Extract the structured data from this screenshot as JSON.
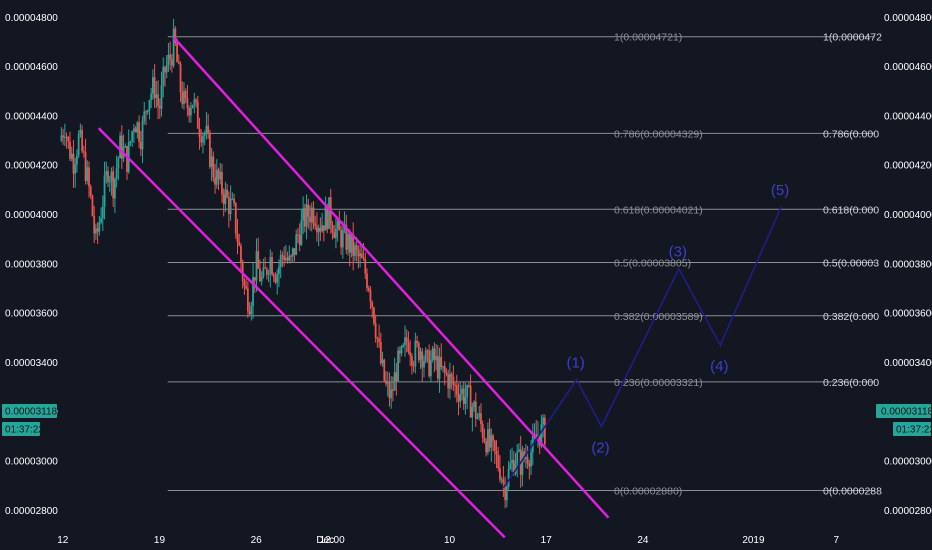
{
  "chart_data": {
    "type": "candlestick",
    "title": "",
    "price_axis": {
      "ticks": [
        2.8e-05,
        3e-05,
        3.2e-05,
        3.4e-05,
        3.6e-05,
        3.8e-05,
        4e-05,
        4.2e-05,
        4.4e-05,
        4.6e-05,
        4.8e-05
      ],
      "labels": [
        "0.00002800",
        "0.00003000",
        "0.00003200",
        "0.00003400",
        "0.00003600",
        "0.00003800",
        "0.00004000",
        "0.00004200",
        "0.00004400",
        "0.00004600",
        "0.00004800"
      ],
      "range": [
        2.72e-05,
        4.87e-05
      ]
    },
    "time_axis": {
      "ticks": [
        {
          "label": "12",
          "t": 0
        },
        {
          "label": "19",
          "t": 7
        },
        {
          "label": "26",
          "t": 14
        },
        {
          "label": "Dec",
          "t": 19
        },
        {
          "label": "12:00",
          "t": 19.5
        },
        {
          "label": "10",
          "t": 28
        },
        {
          "label": "17",
          "t": 35
        },
        {
          "label": "24",
          "t": 42
        },
        {
          "label": "2019",
          "t": 50
        },
        {
          "label": "7",
          "t": 56
        }
      ],
      "range": [
        -0.2,
        58.8
      ]
    },
    "current_price": {
      "label": "0.00003118",
      "countdown": "01:37:22",
      "value": 3.118e-05
    },
    "price_path": [
      [
        -0.1,
        4.3e-05
      ],
      [
        0.3,
        4.37e-05
      ],
      [
        0.5,
        4.28e-05
      ],
      [
        0.9,
        4.22e-05
      ],
      [
        1.3,
        4.31e-05
      ],
      [
        1.8,
        4.18e-05
      ],
      [
        2.2,
        4.04e-05
      ],
      [
        2.5,
        3.88e-05
      ],
      [
        3.0,
        4.05e-05
      ],
      [
        3.4,
        4.19e-05
      ],
      [
        3.8,
        4.12e-05
      ],
      [
        4.3,
        4.28e-05
      ],
      [
        4.8,
        4.22e-05
      ],
      [
        5.3,
        4.39e-05
      ],
      [
        5.8,
        4.32e-05
      ],
      [
        6.3,
        4.48e-05
      ],
      [
        6.8,
        4.52e-05
      ],
      [
        7.1,
        4.42e-05
      ],
      [
        7.5,
        4.58e-05
      ],
      [
        8.0,
        4.65e-05
      ],
      [
        8.2,
        4.71e-05
      ],
      [
        8.6,
        4.52e-05
      ],
      [
        9.0,
        4.43e-05
      ],
      [
        9.5,
        4.47e-05
      ],
      [
        10.0,
        4.36e-05
      ],
      [
        10.5,
        4.32e-05
      ],
      [
        11.0,
        4.18e-05
      ],
      [
        11.5,
        4.12e-05
      ],
      [
        12.0,
        4.06e-05
      ],
      [
        12.5,
        4.01e-05
      ],
      [
        12.9,
        3.86e-05
      ],
      [
        13.3,
        3.69e-05
      ],
      [
        13.7,
        3.65e-05
      ],
      [
        14.1,
        3.8e-05
      ],
      [
        14.6,
        3.72e-05
      ],
      [
        15.1,
        3.83e-05
      ],
      [
        15.6,
        3.76e-05
      ],
      [
        16.1,
        3.85e-05
      ],
      [
        16.6,
        3.79e-05
      ],
      [
        17.1,
        3.91e-05
      ],
      [
        17.6,
        3.98e-05
      ],
      [
        18.2,
        4.02e-05
      ],
      [
        18.8,
        3.96e-05
      ],
      [
        19.4,
        4.01e-05
      ],
      [
        20.0,
        3.92e-05
      ],
      [
        20.6,
        3.9e-05
      ],
      [
        21.2,
        3.85e-05
      ],
      [
        21.8,
        3.8e-05
      ],
      [
        22.3,
        3.72e-05
      ],
      [
        22.7,
        3.58e-05
      ],
      [
        23.1,
        3.41e-05
      ],
      [
        23.5,
        3.3e-05
      ],
      [
        23.9,
        3.26e-05
      ],
      [
        24.3,
        3.38e-05
      ],
      [
        24.7,
        3.42e-05
      ],
      [
        25.1,
        3.5e-05
      ],
      [
        25.5,
        3.43e-05
      ],
      [
        26.0,
        3.46e-05
      ],
      [
        26.5,
        3.39e-05
      ],
      [
        27.0,
        3.41e-05
      ],
      [
        27.5,
        3.36e-05
      ],
      [
        28.0,
        3.34e-05
      ],
      [
        28.5,
        3.3e-05
      ],
      [
        29.0,
        3.28e-05
      ],
      [
        29.5,
        3.25e-05
      ],
      [
        30.0,
        3.2e-05
      ],
      [
        30.5,
        3.13e-05
      ],
      [
        31.0,
        3.06e-05
      ],
      [
        31.4,
        3.02e-05
      ],
      [
        31.8,
        2.97e-05
      ],
      [
        32.1,
        2.89e-05
      ],
      [
        32.5,
        2.97e-05
      ],
      [
        32.9,
        3.02e-05
      ],
      [
        33.3,
        2.99e-05
      ],
      [
        33.7,
        3.03e-05
      ],
      [
        34.1,
        3.04e-05
      ],
      [
        34.5,
        3.11e-05
      ],
      [
        34.9,
        3.12e-05
      ]
    ],
    "channel_lines": [
      {
        "name": "",
        "points": [
          [
            8.0,
            4.72e-05
          ],
          [
            39.5,
            2.77e-05
          ]
        ]
      },
      {
        "name": "",
        "points": [
          [
            2.6,
            4.35e-05
          ],
          [
            32.0,
            2.69e-05
          ]
        ]
      }
    ],
    "fibonacci": {
      "range_start_t": 7.6,
      "levels": [
        {
          "ratio": "1",
          "price": "0.00004721",
          "value": 4.721e-05,
          "right_label": "1(0.0000472"
        },
        {
          "ratio": "0.786",
          "price": "0.00004329",
          "value": 4.329e-05,
          "right_label": "0.786(0.000"
        },
        {
          "ratio": "0.618",
          "price": "0.00004021",
          "value": 4.021e-05,
          "right_label": "0.618(0.000"
        },
        {
          "ratio": "0.5",
          "price": "0.00003805",
          "value": 3.805e-05,
          "right_label": "0.5(0.00003"
        },
        {
          "ratio": "0.382",
          "price": "0.00003589",
          "value": 3.589e-05,
          "right_label": "0.382(0.000"
        },
        {
          "ratio": "0.236",
          "price": "0.00003321",
          "value": 3.321e-05,
          "right_label": "0.236(0.000"
        },
        {
          "ratio": "0",
          "price": "0.00002880",
          "value": 2.88e-05,
          "right_label": "0(0.0000288"
        }
      ]
    },
    "elliott_wave": {
      "points": [
        [
          31.9,
          2.89e-05
        ],
        [
          37.2,
          3.33e-05
        ],
        [
          39.0,
          3.14e-05
        ],
        [
          44.6,
          3.78e-05
        ],
        [
          47.6,
          3.47e-05
        ],
        [
          52.0,
          4.03e-05
        ]
      ],
      "labels": [
        "(1)",
        "(2)",
        "(3)",
        "(4)",
        "(5)"
      ]
    },
    "colors": {
      "background": "#131722",
      "channel": "#e01fe0",
      "fib_line": "#8a8d94",
      "wave": "#1d1f86",
      "wave_label": "#3a3fd0",
      "candle_up": "#26a69a",
      "candle_down": "#ef5350",
      "price_badge": "#26a69a"
    }
  }
}
